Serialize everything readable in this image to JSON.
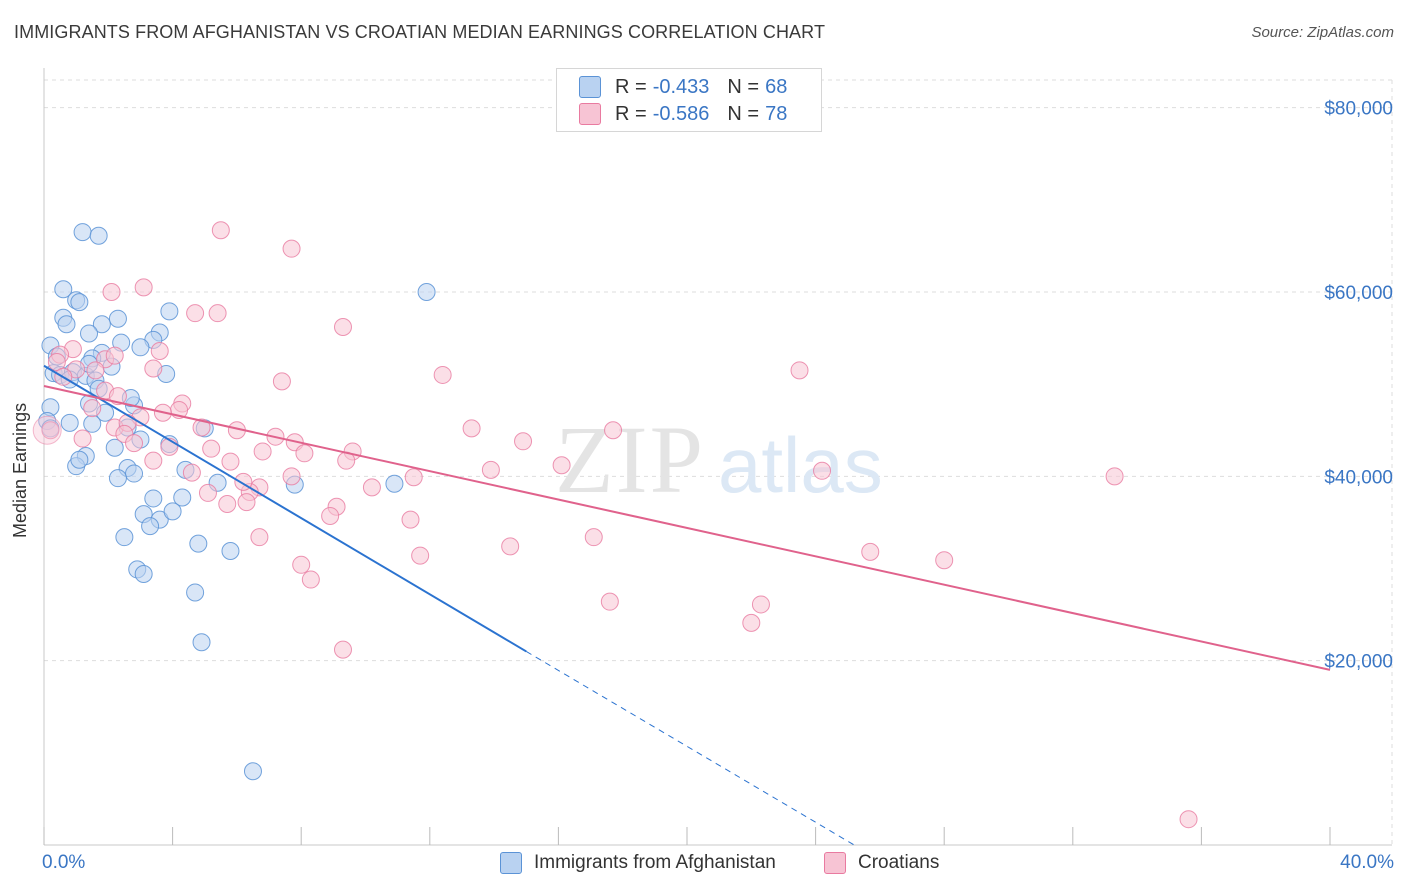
{
  "title": "IMMIGRANTS FROM AFGHANISTAN VS CROATIAN MEDIAN EARNINGS CORRELATION CHART",
  "source": "Source: ZipAtlas.com",
  "watermark": {
    "zip": "ZIP",
    "atlas": "atlas"
  },
  "legend": {
    "series1": {
      "r_label": "R =",
      "r_value": "-0.433",
      "n_label": "N =",
      "n_value": "68"
    },
    "series2": {
      "r_label": "R =",
      "r_value": "-0.586",
      "n_label": "N =",
      "n_value": "78"
    }
  },
  "bottom_legend": {
    "series1": "Immigrants from Afghanistan",
    "series2": "Croatians"
  },
  "x_axis": {
    "min_label": "0.0%",
    "max_label": "40.0%"
  },
  "y_axis": {
    "label": "Median Earnings",
    "ticks": [
      "$20,000",
      "$40,000",
      "$60,000",
      "$80,000"
    ]
  },
  "colors": {
    "blue": "#5b93d6",
    "blue_fill": "#b9d2f1",
    "blue_line": "#2b73d0",
    "pink": "#e97aa0",
    "pink_fill": "#f7c4d4",
    "pink_line": "#e0628c",
    "axis_text": "#3a76c4",
    "grid": "#dddddd"
  },
  "chart_data": {
    "type": "scatter",
    "xlim": [
      0,
      40
    ],
    "ylim": [
      0,
      83000
    ],
    "xlabel": "",
    "ylabel": "Median Earnings",
    "y_ticks": [
      20000,
      40000,
      60000,
      80000
    ],
    "series": [
      {
        "name": "Immigrants from Afghanistan",
        "R": -0.433,
        "N": 68,
        "trend": {
          "x_start": 0,
          "y_start": 52000,
          "x_solid_end": 15,
          "y_solid_end": 21000,
          "x_dash_end": 25.2,
          "y_dash_end": 0
        },
        "points": [
          [
            1.2,
            66500
          ],
          [
            1.7,
            66100
          ],
          [
            0.6,
            60300
          ],
          [
            11.9,
            60000
          ],
          [
            1.0,
            59100
          ],
          [
            1.1,
            58900
          ],
          [
            3.9,
            57900
          ],
          [
            0.6,
            57200
          ],
          [
            0.7,
            56500
          ],
          [
            2.3,
            57100
          ],
          [
            1.8,
            56500
          ],
          [
            1.4,
            55500
          ],
          [
            3.6,
            55600
          ],
          [
            3.4,
            54800
          ],
          [
            2.4,
            54500
          ],
          [
            0.2,
            54200
          ],
          [
            3.0,
            54000
          ],
          [
            1.8,
            53400
          ],
          [
            0.4,
            53000
          ],
          [
            1.5,
            52800
          ],
          [
            2.1,
            51900
          ],
          [
            0.3,
            51200
          ],
          [
            0.5,
            51000
          ],
          [
            0.9,
            51300
          ],
          [
            3.8,
            51100
          ],
          [
            1.3,
            50900
          ],
          [
            0.8,
            50500
          ],
          [
            1.6,
            50400
          ],
          [
            1.7,
            49500
          ],
          [
            0.2,
            47500
          ],
          [
            1.4,
            47900
          ],
          [
            2.8,
            47700
          ],
          [
            1.9,
            46900
          ],
          [
            0.1,
            46000
          ],
          [
            0.2,
            45200
          ],
          [
            1.5,
            45700
          ],
          [
            2.6,
            45300
          ],
          [
            5.0,
            45200
          ],
          [
            3.9,
            43500
          ],
          [
            2.2,
            43100
          ],
          [
            1.3,
            42200
          ],
          [
            1.0,
            41100
          ],
          [
            2.6,
            40900
          ],
          [
            4.4,
            40700
          ],
          [
            2.8,
            40300
          ],
          [
            2.3,
            39800
          ],
          [
            5.4,
            39300
          ],
          [
            7.8,
            39100
          ],
          [
            10.9,
            39200
          ],
          [
            4.3,
            37700
          ],
          [
            3.4,
            37600
          ],
          [
            3.1,
            35900
          ],
          [
            3.6,
            35300
          ],
          [
            3.3,
            34600
          ],
          [
            2.5,
            33400
          ],
          [
            4.8,
            32700
          ],
          [
            5.8,
            31900
          ],
          [
            2.9,
            29900
          ],
          [
            3.1,
            29400
          ],
          [
            4.7,
            27400
          ],
          [
            4.9,
            22000
          ],
          [
            6.5,
            8000
          ],
          [
            1.4,
            52200
          ],
          [
            2.7,
            48500
          ],
          [
            0.8,
            45800
          ],
          [
            3.0,
            44000
          ],
          [
            1.1,
            41800
          ],
          [
            4.0,
            36200
          ]
        ]
      },
      {
        "name": "Croatians",
        "R": -0.586,
        "N": 78,
        "trend": {
          "x_start": 0,
          "y_start": 49800,
          "x_end": 40,
          "y_end": 19000
        },
        "points": [
          [
            5.5,
            66700
          ],
          [
            7.7,
            64700
          ],
          [
            3.1,
            60500
          ],
          [
            2.1,
            60000
          ],
          [
            4.7,
            57700
          ],
          [
            5.4,
            57700
          ],
          [
            9.3,
            56200
          ],
          [
            0.9,
            53800
          ],
          [
            0.5,
            53200
          ],
          [
            3.6,
            53600
          ],
          [
            1.9,
            52700
          ],
          [
            2.2,
            53100
          ],
          [
            0.4,
            52400
          ],
          [
            1.0,
            51600
          ],
          [
            1.6,
            51500
          ],
          [
            3.4,
            51700
          ],
          [
            12.4,
            51000
          ],
          [
            7.4,
            50300
          ],
          [
            23.5,
            51500
          ],
          [
            1.9,
            49300
          ],
          [
            4.3,
            47900
          ],
          [
            4.2,
            47200
          ],
          [
            3.0,
            46400
          ],
          [
            2.2,
            45300
          ],
          [
            2.6,
            45800
          ],
          [
            4.9,
            45300
          ],
          [
            6.0,
            45000
          ],
          [
            13.3,
            45200
          ],
          [
            17.7,
            45000
          ],
          [
            0.2,
            45000
          ],
          [
            2.5,
            44600
          ],
          [
            7.2,
            44300
          ],
          [
            7.8,
            43700
          ],
          [
            14.9,
            43800
          ],
          [
            3.9,
            43200
          ],
          [
            5.2,
            43000
          ],
          [
            6.8,
            42700
          ],
          [
            8.1,
            42500
          ],
          [
            9.6,
            42700
          ],
          [
            9.4,
            41700
          ],
          [
            16.1,
            41200
          ],
          [
            3.4,
            41700
          ],
          [
            4.6,
            40400
          ],
          [
            13.9,
            40700
          ],
          [
            24.2,
            40600
          ],
          [
            33.3,
            40000
          ],
          [
            7.7,
            40000
          ],
          [
            11.5,
            39900
          ],
          [
            6.7,
            38800
          ],
          [
            5.1,
            38200
          ],
          [
            6.4,
            38300
          ],
          [
            6.3,
            37200
          ],
          [
            5.7,
            37000
          ],
          [
            9.1,
            36700
          ],
          [
            8.9,
            35700
          ],
          [
            11.4,
            35300
          ],
          [
            6.7,
            33400
          ],
          [
            17.1,
            33400
          ],
          [
            14.5,
            32400
          ],
          [
            25.7,
            31800
          ],
          [
            28.0,
            30900
          ],
          [
            11.7,
            31400
          ],
          [
            8.0,
            30400
          ],
          [
            8.3,
            28800
          ],
          [
            17.6,
            26400
          ],
          [
            22.3,
            26100
          ],
          [
            22.0,
            24100
          ],
          [
            9.3,
            21200
          ],
          [
            35.6,
            2800
          ],
          [
            2.3,
            48700
          ],
          [
            3.7,
            46900
          ],
          [
            1.2,
            44100
          ],
          [
            5.8,
            41600
          ],
          [
            6.2,
            39400
          ],
          [
            10.2,
            38800
          ],
          [
            0.6,
            50800
          ],
          [
            1.5,
            47400
          ],
          [
            2.8,
            43600
          ]
        ]
      }
    ]
  }
}
